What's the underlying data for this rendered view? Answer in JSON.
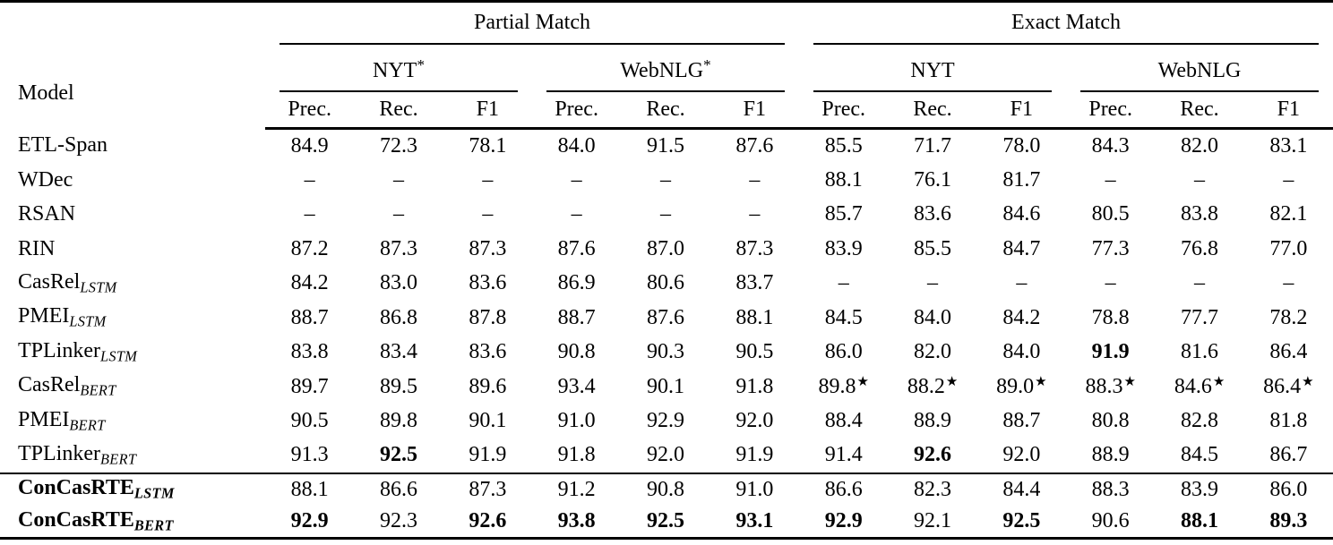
{
  "header": {
    "model": "Model",
    "metrics": [
      "Prec.",
      "Rec.",
      "F1"
    ],
    "groups": [
      {
        "label": "Partial Match",
        "datasets": [
          {
            "label": "NYT",
            "sup": "*"
          },
          {
            "label": "WebNLG",
            "sup": "*"
          }
        ]
      },
      {
        "label": "Exact Match",
        "datasets": [
          {
            "label": "NYT",
            "sup": ""
          },
          {
            "label": "WebNLG",
            "sup": ""
          }
        ]
      }
    ]
  },
  "symbols": {
    "star": "★",
    "dash": "–"
  },
  "rows": [
    {
      "model": "ETL-Span",
      "sub": "",
      "bold": false,
      "sep": false,
      "cells": [
        {
          "v": "84.9"
        },
        {
          "v": "72.3"
        },
        {
          "v": "78.1"
        },
        {
          "v": "84.0"
        },
        {
          "v": "91.5"
        },
        {
          "v": "87.6"
        },
        {
          "v": "85.5"
        },
        {
          "v": "71.7"
        },
        {
          "v": "78.0"
        },
        {
          "v": "84.3"
        },
        {
          "v": "82.0"
        },
        {
          "v": "83.1"
        }
      ]
    },
    {
      "model": "WDec",
      "sub": "",
      "bold": false,
      "sep": false,
      "cells": [
        {
          "v": "–"
        },
        {
          "v": "–"
        },
        {
          "v": "–"
        },
        {
          "v": "–"
        },
        {
          "v": "–"
        },
        {
          "v": "–"
        },
        {
          "v": "88.1"
        },
        {
          "v": "76.1"
        },
        {
          "v": "81.7"
        },
        {
          "v": "–"
        },
        {
          "v": "–"
        },
        {
          "v": "–"
        }
      ]
    },
    {
      "model": "RSAN",
      "sub": "",
      "bold": false,
      "sep": false,
      "cells": [
        {
          "v": "–"
        },
        {
          "v": "–"
        },
        {
          "v": "–"
        },
        {
          "v": "–"
        },
        {
          "v": "–"
        },
        {
          "v": "–"
        },
        {
          "v": "85.7"
        },
        {
          "v": "83.6"
        },
        {
          "v": "84.6"
        },
        {
          "v": "80.5"
        },
        {
          "v": "83.8"
        },
        {
          "v": "82.1"
        }
      ]
    },
    {
      "model": "RIN",
      "sub": "",
      "bold": false,
      "sep": false,
      "cells": [
        {
          "v": "87.2"
        },
        {
          "v": "87.3"
        },
        {
          "v": "87.3"
        },
        {
          "v": "87.6"
        },
        {
          "v": "87.0"
        },
        {
          "v": "87.3"
        },
        {
          "v": "83.9"
        },
        {
          "v": "85.5"
        },
        {
          "v": "84.7"
        },
        {
          "v": "77.3"
        },
        {
          "v": "76.8"
        },
        {
          "v": "77.0"
        }
      ]
    },
    {
      "model": "CasRel",
      "sub": "LSTM",
      "bold": false,
      "sep": false,
      "cells": [
        {
          "v": "84.2"
        },
        {
          "v": "83.0"
        },
        {
          "v": "83.6"
        },
        {
          "v": "86.9"
        },
        {
          "v": "80.6"
        },
        {
          "v": "83.7"
        },
        {
          "v": "–"
        },
        {
          "v": "–"
        },
        {
          "v": "–"
        },
        {
          "v": "–"
        },
        {
          "v": "–"
        },
        {
          "v": "–"
        }
      ]
    },
    {
      "model": "PMEI",
      "sub": "LSTM",
      "bold": false,
      "sep": false,
      "cells": [
        {
          "v": "88.7"
        },
        {
          "v": "86.8"
        },
        {
          "v": "87.8"
        },
        {
          "v": "88.7"
        },
        {
          "v": "87.6"
        },
        {
          "v": "88.1"
        },
        {
          "v": "84.5"
        },
        {
          "v": "84.0"
        },
        {
          "v": "84.2"
        },
        {
          "v": "78.8"
        },
        {
          "v": "77.7"
        },
        {
          "v": "78.2"
        }
      ]
    },
    {
      "model": "TPLinker",
      "sub": "LSTM",
      "bold": false,
      "sep": false,
      "cells": [
        {
          "v": "83.8"
        },
        {
          "v": "83.4"
        },
        {
          "v": "83.6"
        },
        {
          "v": "90.8"
        },
        {
          "v": "90.3"
        },
        {
          "v": "90.5"
        },
        {
          "v": "86.0"
        },
        {
          "v": "82.0"
        },
        {
          "v": "84.0"
        },
        {
          "v": "91.9",
          "b": true
        },
        {
          "v": "81.6"
        },
        {
          "v": "86.4"
        }
      ]
    },
    {
      "model": "CasRel",
      "sub": "BERT",
      "bold": false,
      "sep": false,
      "cells": [
        {
          "v": "89.7"
        },
        {
          "v": "89.5"
        },
        {
          "v": "89.6"
        },
        {
          "v": "93.4"
        },
        {
          "v": "90.1"
        },
        {
          "v": "91.8"
        },
        {
          "v": "89.8",
          "s": true
        },
        {
          "v": "88.2",
          "s": true
        },
        {
          "v": "89.0",
          "s": true
        },
        {
          "v": "88.3",
          "s": true
        },
        {
          "v": "84.6",
          "s": true
        },
        {
          "v": "86.4",
          "s": true
        }
      ]
    },
    {
      "model": "PMEI",
      "sub": "BERT",
      "bold": false,
      "sep": false,
      "cells": [
        {
          "v": "90.5"
        },
        {
          "v": "89.8"
        },
        {
          "v": "90.1"
        },
        {
          "v": "91.0"
        },
        {
          "v": "92.9"
        },
        {
          "v": "92.0"
        },
        {
          "v": "88.4"
        },
        {
          "v": "88.9"
        },
        {
          "v": "88.7"
        },
        {
          "v": "80.8"
        },
        {
          "v": "82.8"
        },
        {
          "v": "81.8"
        }
      ]
    },
    {
      "model": "TPLinker",
      "sub": "BERT",
      "bold": false,
      "sep": false,
      "cells": [
        {
          "v": "91.3"
        },
        {
          "v": "92.5",
          "b": true
        },
        {
          "v": "91.9"
        },
        {
          "v": "91.8"
        },
        {
          "v": "92.0"
        },
        {
          "v": "91.9"
        },
        {
          "v": "91.4"
        },
        {
          "v": "92.6",
          "b": true
        },
        {
          "v": "92.0"
        },
        {
          "v": "88.9"
        },
        {
          "v": "84.5"
        },
        {
          "v": "86.7"
        }
      ]
    },
    {
      "model": "ConCasRTE",
      "sub": "LSTM",
      "bold": true,
      "sep": true,
      "cells": [
        {
          "v": "88.1"
        },
        {
          "v": "86.6"
        },
        {
          "v": "87.3"
        },
        {
          "v": "91.2"
        },
        {
          "v": "90.8"
        },
        {
          "v": "91.0"
        },
        {
          "v": "86.6"
        },
        {
          "v": "82.3"
        },
        {
          "v": "84.4"
        },
        {
          "v": "88.3"
        },
        {
          "v": "83.9"
        },
        {
          "v": "86.0"
        }
      ]
    },
    {
      "model": "ConCasRTE",
      "sub": "BERT",
      "bold": true,
      "sep": false,
      "cells": [
        {
          "v": "92.9",
          "b": true
        },
        {
          "v": "92.3"
        },
        {
          "v": "92.6",
          "b": true
        },
        {
          "v": "93.8",
          "b": true
        },
        {
          "v": "92.5",
          "b": true
        },
        {
          "v": "93.1",
          "b": true
        },
        {
          "v": "92.9",
          "b": true
        },
        {
          "v": "92.1"
        },
        {
          "v": "92.5",
          "b": true
        },
        {
          "v": "90.6"
        },
        {
          "v": "88.1",
          "b": true
        },
        {
          "v": "89.3",
          "b": true
        }
      ]
    }
  ]
}
